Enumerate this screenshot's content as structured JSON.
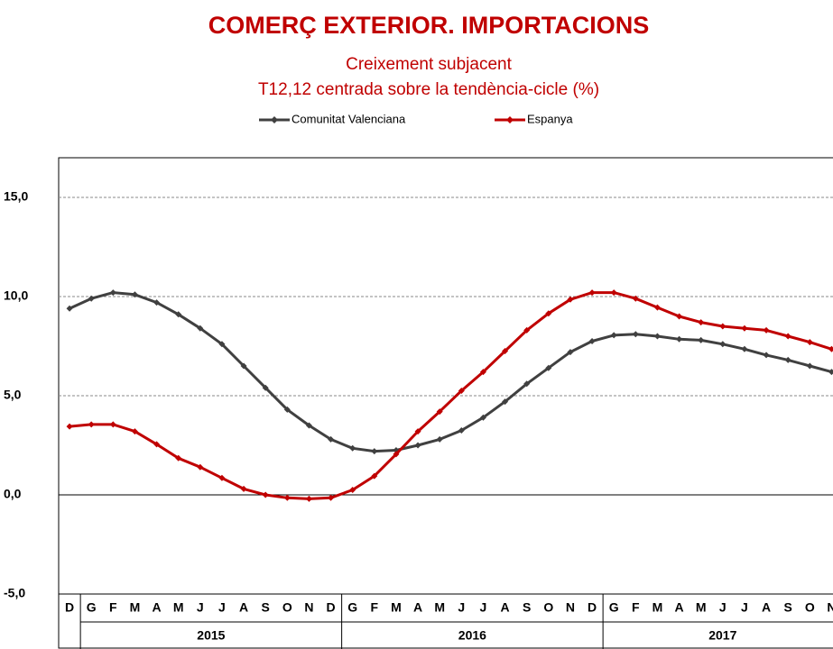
{
  "chart_data": {
    "type": "line",
    "title": "COMERÇ EXTERIOR. IMPORTACIONS",
    "subtitle": "Creixement  subjacent",
    "subtitle2": "T12,12 centrada sobre la tendència-cicle (%)",
    "categories": [
      "D",
      "G",
      "F",
      "M",
      "A",
      "M",
      "J",
      "J",
      "A",
      "S",
      "O",
      "N",
      "D",
      "G",
      "F",
      "M",
      "A",
      "M",
      "J",
      "J",
      "A",
      "S",
      "O",
      "N",
      "D",
      "G",
      "F",
      "M",
      "A",
      "M",
      "J",
      "J",
      "A",
      "S",
      "O",
      "N"
    ],
    "year_groups": [
      {
        "label": "2015",
        "count": 12
      },
      {
        "label": "2016",
        "count": 12
      },
      {
        "label": "2017",
        "count": 11
      }
    ],
    "series": [
      {
        "name": "Comunitat Valenciana",
        "color": "#404040",
        "values": [
          9.4,
          9.9,
          10.2,
          10.1,
          9.7,
          9.1,
          8.4,
          7.6,
          6.5,
          5.4,
          4.3,
          3.5,
          2.8,
          2.35,
          2.2,
          2.25,
          2.5,
          2.8,
          3.25,
          3.9,
          4.7,
          5.6,
          6.4,
          7.2,
          7.75,
          8.05,
          8.1,
          8.0,
          7.85,
          7.8,
          7.6,
          7.35,
          7.05,
          6.8,
          6.5,
          6.2
        ]
      },
      {
        "name": "Espanya",
        "color": "#c00000",
        "values": [
          3.45,
          3.55,
          3.55,
          3.2,
          2.55,
          1.85,
          1.4,
          0.85,
          0.3,
          0.0,
          -0.15,
          -0.2,
          -0.15,
          0.25,
          0.95,
          2.05,
          3.2,
          4.2,
          5.25,
          6.2,
          7.25,
          8.3,
          9.15,
          9.85,
          10.2,
          10.2,
          9.9,
          9.45,
          9.0,
          8.7,
          8.5,
          8.4,
          8.3,
          8.0,
          7.7,
          7.35
        ]
      }
    ],
    "ylim": [
      -5,
      17
    ],
    "yticks": [
      {
        "value": -5,
        "label": "-5,0"
      },
      {
        "value": 0,
        "label": "0,0"
      },
      {
        "value": 5,
        "label": "5,0"
      },
      {
        "value": 10,
        "label": "10,0"
      },
      {
        "value": 15,
        "label": "15,0"
      }
    ],
    "grid": true
  }
}
